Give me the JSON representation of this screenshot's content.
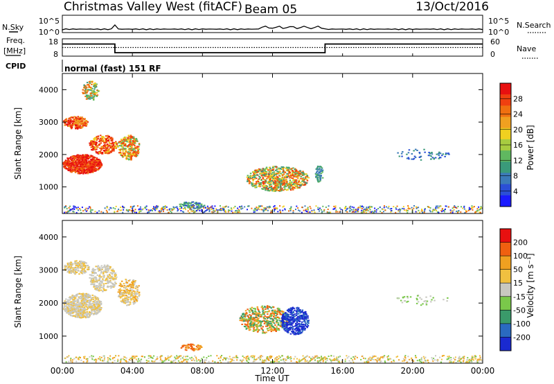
{
  "header": {
    "station": "Christmas Valley West (fitACF)",
    "beam": "Beam 05",
    "date": "13/Oct/2016"
  },
  "strip_labels": {
    "nsky": "N.Sky",
    "nsky_ticks": [
      "10^5",
      "10^0"
    ],
    "nsearch": "N.Search",
    "nsearch_ticks": [
      "10^5",
      "10^0"
    ],
    "freq": "Freq.",
    "freq_unit": "[MHz]",
    "freq_ticks": [
      "18",
      "8"
    ],
    "nave": "Nave",
    "nave_ticks": [
      "60",
      "0"
    ],
    "cpid": "CPID",
    "cpid_value": "normal (fast) 151 RF"
  },
  "chart_data": [
    {
      "type": "line",
      "x": [
        "00:00",
        "03:00",
        "03:00",
        "15:00",
        "15:00",
        "24:00"
      ],
      "series": [
        {
          "values": [
            15,
            15,
            10,
            10,
            15,
            15
          ]
        }
      ],
      "ylim": [
        8,
        18
      ],
      "xlim": [
        "00:00",
        "24:00"
      ]
    },
    {
      "type": "heatmap",
      "ylabel": "Slant Range [km]",
      "yticks": [
        "1000",
        "2000",
        "3000",
        "4000"
      ],
      "ylim": [
        180,
        4500
      ],
      "colorbar_label": "Power [dB]",
      "colorbar_ticks": [
        "4",
        "8",
        "12",
        "16",
        "20",
        "24",
        "28"
      ],
      "colorbar_colors": [
        "#1a1aff",
        "#2b4fd6",
        "#3b7ab8",
        "#3a9a7a",
        "#60b860",
        "#a8cc40",
        "#f0d020",
        "#f0a020",
        "#f07010",
        "#f04010",
        "#e81010"
      ]
    },
    {
      "type": "heatmap",
      "ylabel": "Slant Range [km]",
      "yticks": [
        "1000",
        "2000",
        "3000",
        "4000"
      ],
      "ylim": [
        180,
        4500
      ],
      "colorbar_label": "Velocity [m s⁻¹]",
      "colorbar_ticks": [
        "200",
        "100",
        "50",
        "15",
        "-15",
        "-50",
        "-100",
        "-200"
      ],
      "colorbar_colors": [
        "#1a2ad0",
        "#2a6ac0",
        "#3a9a6a",
        "#7ac84a",
        "#c8c8c0",
        "#f0c040",
        "#f0a020",
        "#f06010",
        "#e81010"
      ]
    }
  ],
  "xaxis": {
    "ticks": [
      "00:00",
      "04:00",
      "08:00",
      "12:00",
      "16:00",
      "20:00",
      "00:00"
    ],
    "label": "Time UT"
  }
}
